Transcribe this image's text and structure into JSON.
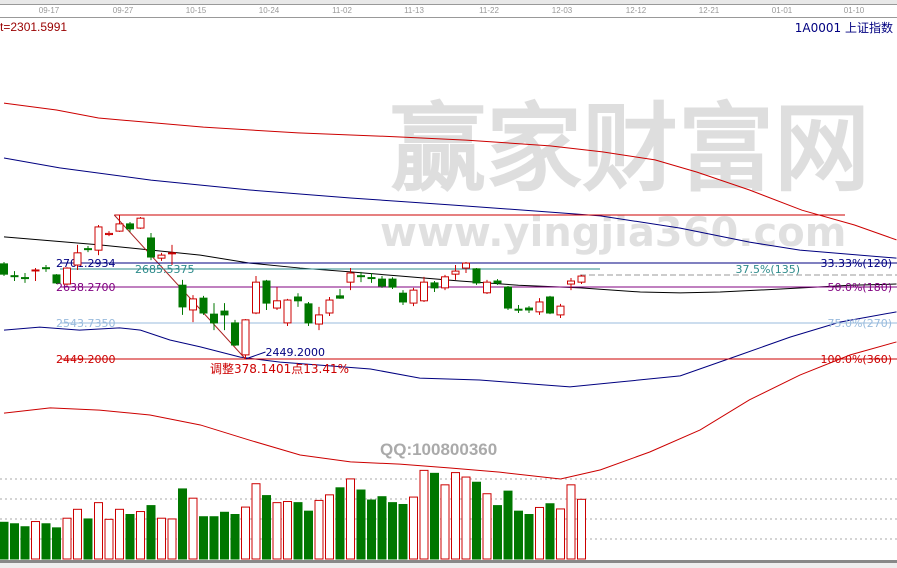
{
  "header": {
    "left_value": "t=2301.5991",
    "symbol": "1A0001",
    "name": "上证指数"
  },
  "watermark": {
    "brand": "赢家财富网",
    "url": "www.yingjia360.com",
    "qq": "QQ:100800360"
  },
  "colors": {
    "up": "#cc0000",
    "down": "#007700",
    "ma": "#000000",
    "band_outer": "#cc0000",
    "band_inner": "#000080",
    "fib_33": "#000080",
    "fib_375": "#2e8b8b",
    "fib_50": "#800080",
    "fib_75": "#99bbdd",
    "fib_100": "#cc0000"
  },
  "chart_data": {
    "type": "candlestick",
    "x_ticks": [
      "09-17",
      "09-27",
      "10-15",
      "10-24",
      "11-02",
      "11-13",
      "11-22",
      "12-03",
      "12-12",
      "12-21",
      "01-01",
      "01-10"
    ],
    "ohlc": [
      [
        2699,
        2704,
        2667,
        2672
      ],
      [
        2668,
        2680,
        2654,
        2666
      ],
      [
        2663,
        2675,
        2649,
        2661
      ],
      [
        2681,
        2688,
        2654,
        2683
      ],
      [
        2689,
        2696,
        2678,
        2687
      ],
      [
        2670,
        2672,
        2646,
        2649
      ],
      [
        2646,
        2690,
        2643,
        2688
      ],
      [
        2696,
        2749,
        2683,
        2728
      ],
      [
        2739,
        2746,
        2730,
        2737
      ],
      [
        2735,
        2801,
        2722,
        2796
      ],
      [
        2776,
        2785,
        2772,
        2779
      ],
      [
        2785,
        2827,
        2783,
        2804
      ],
      [
        2804,
        2809,
        2783,
        2791
      ],
      [
        2793,
        2822,
        2791,
        2819
      ],
      [
        2767,
        2780,
        2709,
        2717
      ],
      [
        2714,
        2728,
        2707,
        2722
      ],
      [
        2726,
        2749,
        2696,
        2728
      ],
      [
        2643,
        2657,
        2565,
        2586
      ],
      [
        2578,
        2617,
        2546,
        2607
      ],
      [
        2609,
        2615,
        2565,
        2570
      ],
      [
        2567,
        2596,
        2525,
        2544
      ],
      [
        2575,
        2596,
        2525,
        2565
      ],
      [
        2544,
        2552,
        2483,
        2486
      ],
      [
        2460,
        2554,
        2449,
        2552
      ],
      [
        2570,
        2667,
        2567,
        2651
      ],
      [
        2654,
        2657,
        2578,
        2596
      ],
      [
        2583,
        2638,
        2578,
        2602
      ],
      [
        2544,
        2607,
        2536,
        2604
      ],
      [
        2612,
        2622,
        2586,
        2602
      ],
      [
        2594,
        2599,
        2536,
        2544
      ],
      [
        2541,
        2586,
        2525,
        2565
      ],
      [
        2570,
        2612,
        2562,
        2604
      ],
      [
        2615,
        2633,
        2607,
        2609
      ],
      [
        2651,
        2688,
        2630,
        2675
      ],
      [
        2668,
        2678,
        2651,
        2666
      ],
      [
        2663,
        2675,
        2649,
        2661
      ],
      [
        2659,
        2667,
        2636,
        2641
      ],
      [
        2659,
        2664,
        2633,
        2638
      ],
      [
        2622,
        2630,
        2591,
        2599
      ],
      [
        2596,
        2636,
        2588,
        2630
      ],
      [
        2602,
        2665,
        2599,
        2651
      ],
      [
        2649,
        2654,
        2625,
        2636
      ],
      [
        2636,
        2670,
        2630,
        2665
      ],
      [
        2672,
        2696,
        2657,
        2680
      ],
      [
        2688,
        2704,
        2675,
        2701
      ],
      [
        2686,
        2688,
        2644,
        2649
      ],
      [
        2623,
        2657,
        2620,
        2651
      ],
      [
        2654,
        2659,
        2644,
        2649
      ],
      [
        2638,
        2641,
        2578,
        2583
      ],
      [
        2580,
        2591,
        2570,
        2578
      ],
      [
        2583,
        2588,
        2570,
        2578
      ],
      [
        2573,
        2609,
        2565,
        2599
      ],
      [
        2612,
        2615,
        2567,
        2570
      ],
      [
        2565,
        2594,
        2557,
        2588
      ],
      [
        2646,
        2662,
        2630,
        2654
      ],
      [
        2651,
        2670,
        2646,
        2667
      ]
    ],
    "volume_relative": [
      99,
      95,
      87,
      101,
      95,
      84,
      110,
      134,
      108,
      152,
      107,
      134,
      120,
      128,
      144,
      110,
      108,
      189,
      164,
      114,
      114,
      126,
      120,
      140,
      203,
      171,
      152,
      155,
      152,
      129,
      158,
      173,
      192,
      216,
      186,
      159,
      168,
      152,
      147,
      167,
      239,
      231,
      200,
      233,
      221,
      207,
      176,
      144,
      183,
      129,
      120,
      139,
      149,
      135,
      200,
      161
    ],
    "lines": [
      {
        "role": "upper-outer-band",
        "color": "#cc0000",
        "points": [
          [
            0,
            3121
          ],
          [
            5,
            3103
          ],
          [
            9,
            3082
          ],
          [
            19,
            3058
          ],
          [
            28,
            3043
          ],
          [
            38,
            3032
          ],
          [
            44,
            3024
          ],
          [
            52,
            3009
          ],
          [
            57,
            2993
          ],
          [
            62,
            2972
          ],
          [
            66,
            2940
          ],
          [
            71,
            2893
          ],
          [
            76,
            2840
          ],
          [
            81,
            2801
          ],
          [
            85,
            2762
          ]
        ]
      },
      {
        "role": "upper-inner-band",
        "color": "#000080",
        "points": [
          [
            0,
            2977
          ],
          [
            5.3,
            2951
          ],
          [
            14,
            2919
          ],
          [
            23.4,
            2893
          ],
          [
            33,
            2872
          ],
          [
            42.5,
            2854
          ],
          [
            53,
            2833
          ],
          [
            56.8,
            2825
          ],
          [
            64.4,
            2793
          ],
          [
            71,
            2756
          ],
          [
            75.8,
            2735
          ],
          [
            85,
            2714
          ]
        ]
      },
      {
        "role": "middle-ma",
        "color": "#000000",
        "points": [
          [
            0,
            2770
          ],
          [
            9.1,
            2749
          ],
          [
            18.7,
            2722
          ],
          [
            23.4,
            2701
          ],
          [
            28.2,
            2688
          ],
          [
            33,
            2678
          ],
          [
            37.7,
            2667
          ],
          [
            43.4,
            2654
          ],
          [
            49,
            2643
          ],
          [
            54.9,
            2636
          ],
          [
            60.6,
            2625
          ],
          [
            64.4,
            2623
          ],
          [
            68.2,
            2625
          ],
          [
            74,
            2633
          ],
          [
            80.6,
            2643
          ],
          [
            85,
            2646
          ]
        ]
      },
      {
        "role": "lower-inner-band",
        "color": "#000080",
        "points": [
          [
            0,
            2525
          ],
          [
            3.4,
            2533
          ],
          [
            7.2,
            2525
          ],
          [
            11,
            2531
          ],
          [
            13,
            2525
          ],
          [
            15.8,
            2499
          ],
          [
            18.7,
            2481
          ],
          [
            22.5,
            2454
          ],
          [
            26.3,
            2441
          ],
          [
            30.1,
            2433
          ],
          [
            34.9,
            2423
          ],
          [
            39.6,
            2399
          ],
          [
            45.3,
            2394
          ],
          [
            50.1,
            2384
          ],
          [
            53.9,
            2376
          ],
          [
            58.7,
            2389
          ],
          [
            64.4,
            2405
          ],
          [
            70.1,
            2460
          ],
          [
            74.9,
            2507
          ],
          [
            79.6,
            2546
          ],
          [
            85,
            2573
          ]
        ]
      },
      {
        "role": "lower-outer-band",
        "color": "#cc0000",
        "points": [
          [
            0,
            2307
          ],
          [
            4.4,
            2321
          ],
          [
            9.1,
            2315
          ],
          [
            13.9,
            2302
          ],
          [
            18.7,
            2276
          ],
          [
            23.4,
            2236
          ],
          [
            28.2,
            2197
          ],
          [
            33,
            2179
          ],
          [
            37.7,
            2173
          ],
          [
            42.5,
            2163
          ],
          [
            47.2,
            2152
          ],
          [
            53,
            2134
          ],
          [
            56.8,
            2158
          ],
          [
            61.5,
            2205
          ],
          [
            66.3,
            2263
          ],
          [
            71,
            2342
          ],
          [
            75.8,
            2407
          ],
          [
            80.6,
            2460
          ],
          [
            85,
            2494
          ]
        ]
      }
    ],
    "fibonacci": {
      "high": 2827.34,
      "low": 2449.2,
      "levels": [
        {
          "price": "2701.2934",
          "label": "33.33%(120)",
          "value": 2701.2934,
          "color": "#000080"
        },
        {
          "price": "2685.5375",
          "label": "37.5%(135)",
          "value": 2685.5375,
          "color": "#2e8b8b"
        },
        {
          "price": "2638.2700",
          "label": "50.0%(180)",
          "value": 2638.27,
          "color": "#800080"
        },
        {
          "price": "2543.7350",
          "label": "75.0%(270)",
          "value": 2543.735,
          "color": "#99bbdd"
        },
        {
          "price": "2449.2000",
          "label": "100.0%(360)",
          "value": 2449.2,
          "color": "#cc0000"
        }
      ],
      "low_label": "2449.2000",
      "adjust_label": "调整378.1401点13.41%"
    }
  }
}
